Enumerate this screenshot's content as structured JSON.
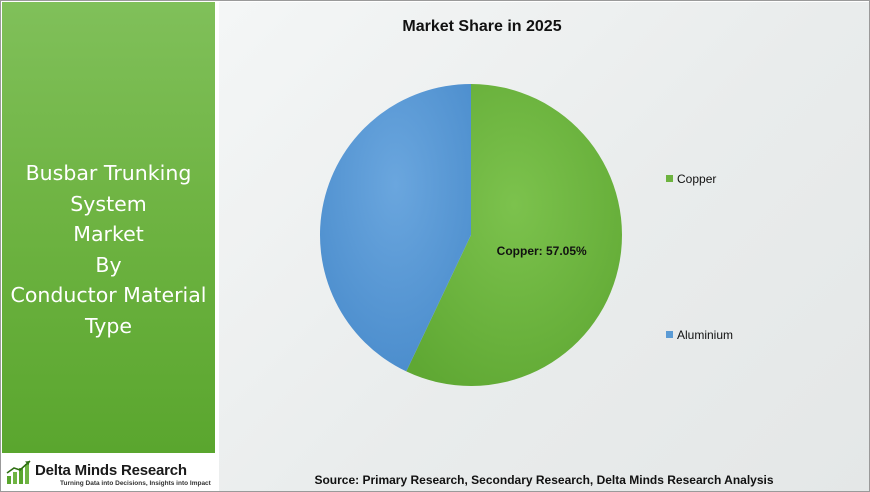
{
  "sidebar": {
    "title_lines": [
      "Busbar Trunking",
      "System",
      "Market",
      "By",
      "Conductor Material",
      "Type"
    ]
  },
  "logo": {
    "name": "Delta Minds Research",
    "tagline": "Turning Data into Decisions, Insights into Impact"
  },
  "colors": {
    "copper": "#6db33f",
    "aluminium": "#5b9bd5",
    "sidebar_green": "#6fb443"
  },
  "chart_data": {
    "type": "pie",
    "title": "Market Share in 2025",
    "categories": [
      "Copper",
      "Aluminium"
    ],
    "values": [
      57.05,
      42.95
    ],
    "data_labels": [
      "Copper: 57.05%",
      ""
    ],
    "legend": [
      "Copper",
      "Aluminium"
    ],
    "legend_position": "right"
  },
  "source": "Source: Primary Research, Secondary Research, Delta Minds Research Analysis"
}
